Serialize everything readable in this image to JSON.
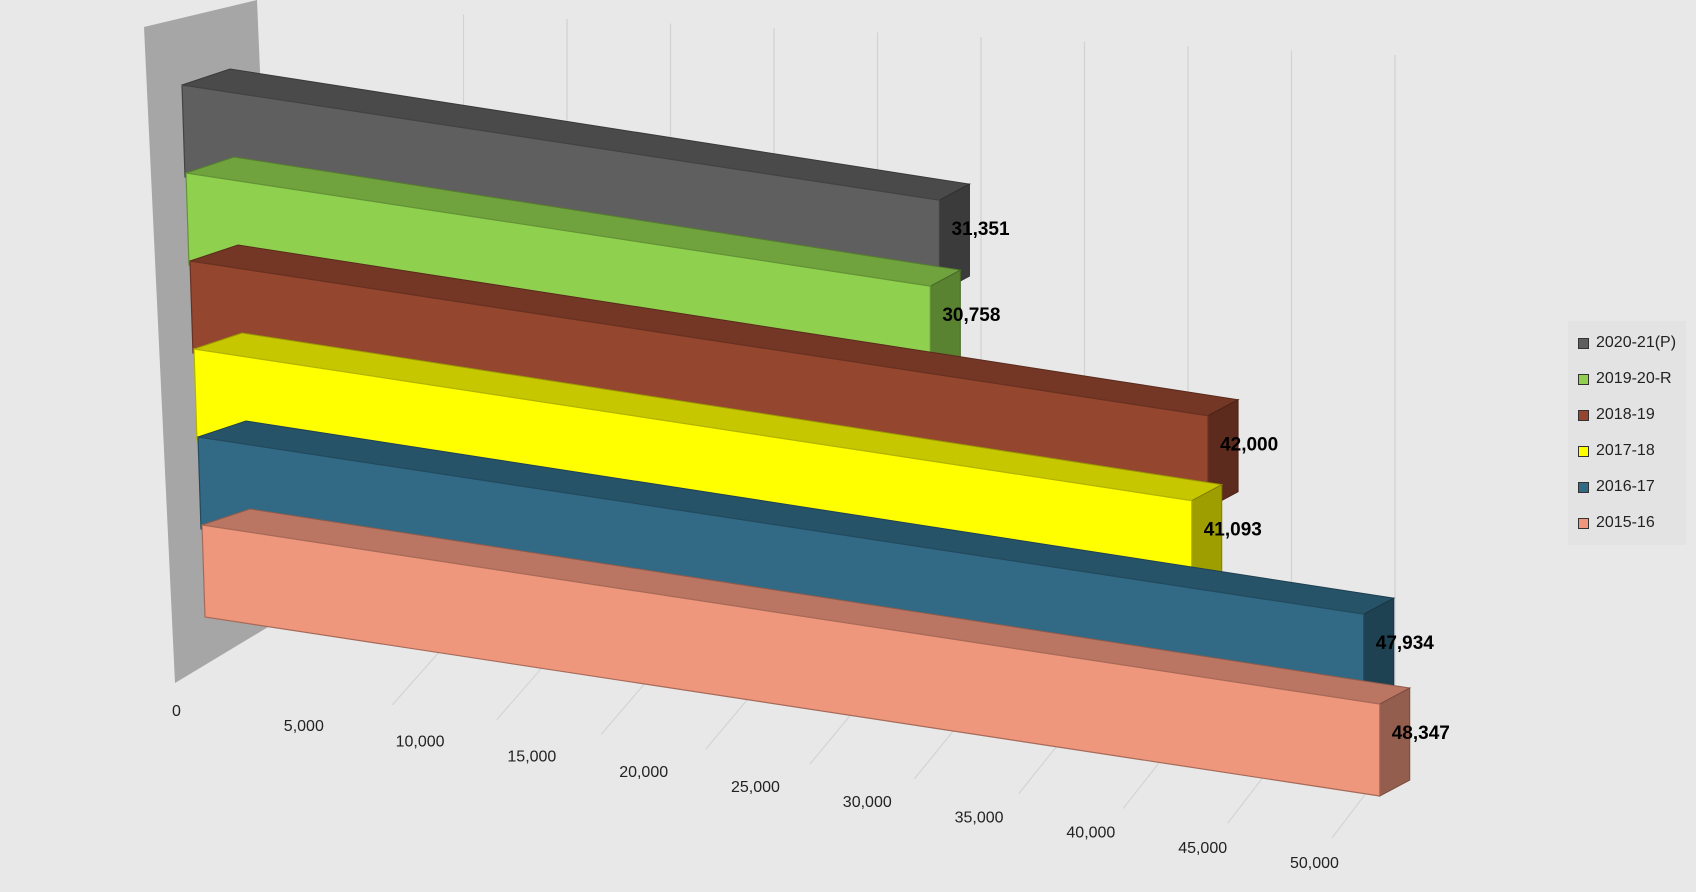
{
  "chart_data": {
    "type": "bar",
    "orientation": "horizontal",
    "style": "3d",
    "title": "",
    "xlabel": "",
    "ylabel": "",
    "xlim": [
      0,
      50000
    ],
    "ticks": [
      {
        "value": 0,
        "label": "0"
      },
      {
        "value": 5000,
        "label": "5,000"
      },
      {
        "value": 10000,
        "label": "10,000"
      },
      {
        "value": 15000,
        "label": "15,000"
      },
      {
        "value": 20000,
        "label": "20,000"
      },
      {
        "value": 25000,
        "label": "25,000"
      },
      {
        "value": 30000,
        "label": "30,000"
      },
      {
        "value": 35000,
        "label": "35,000"
      },
      {
        "value": 40000,
        "label": "40,000"
      },
      {
        "value": 45000,
        "label": "45,000"
      },
      {
        "value": 50000,
        "label": "50,000"
      }
    ],
    "grid": true,
    "legend_position": "right",
    "series": [
      {
        "name": "2020-21(P)",
        "value": 31351,
        "label": "31,351",
        "color": "#5f5f5f"
      },
      {
        "name": "2019-20-R",
        "value": 30758,
        "label": "30,758",
        "color": "#8fd14f"
      },
      {
        "name": "2018-19",
        "value": 42000,
        "label": "42,000",
        "color": "#95462f"
      },
      {
        "name": "2017-18",
        "value": 41093,
        "label": "41,093",
        "color": "#ffff00"
      },
      {
        "name": "2016-17",
        "value": 47934,
        "label": "47,934",
        "color": "#326a86"
      },
      {
        "name": "2015-16",
        "value": 48347,
        "label": "48,347",
        "color": "#ee977d"
      }
    ]
  }
}
